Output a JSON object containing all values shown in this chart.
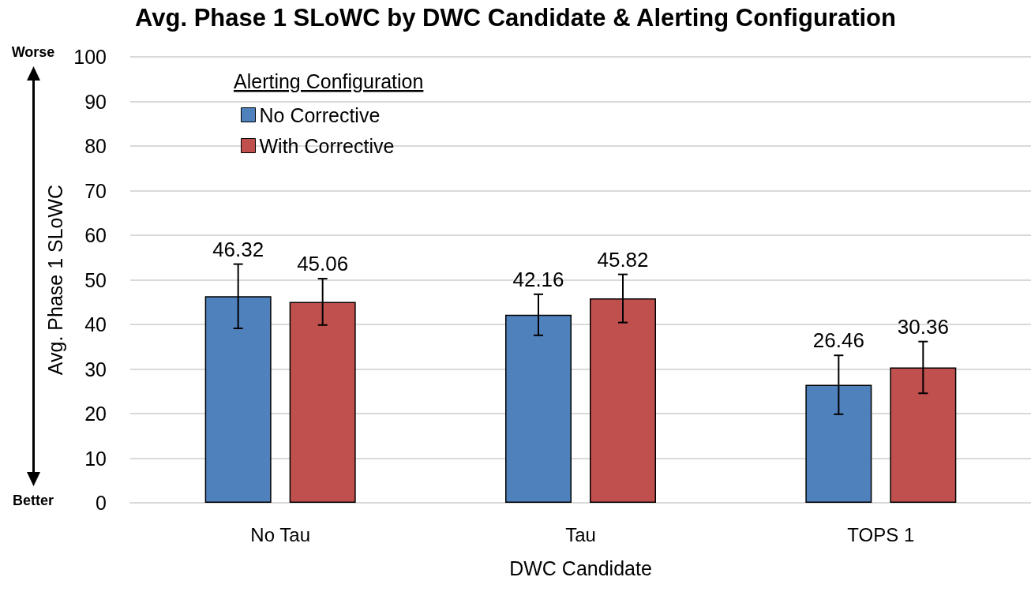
{
  "chart_data": {
    "type": "bar",
    "title": "Avg. Phase 1 SLoWC by DWC Candidate & Alerting Configuration",
    "xlabel": "DWC Candidate",
    "ylabel": "Avg. Phase 1 SLoWC",
    "legend_title": "Alerting Configuration",
    "annotations": [
      "Worse",
      "Better"
    ],
    "categories": [
      "No Tau",
      "Tau",
      "TOPS 1"
    ],
    "series": [
      {
        "name": "No Corrective",
        "color": "#4f81bd",
        "values": [
          46.32,
          42.16,
          26.46
        ],
        "errors": [
          7.2,
          4.6,
          6.6
        ]
      },
      {
        "name": "With Corrective",
        "color": "#c0504d",
        "values": [
          45.06,
          45.82,
          30.36
        ],
        "errors": [
          5.2,
          5.4,
          5.8
        ]
      }
    ],
    "ylim": [
      0,
      100
    ],
    "yticks": [
      0,
      10,
      20,
      30,
      40,
      50,
      60,
      70,
      80,
      90,
      100
    ],
    "grid": "y",
    "legend": "top left",
    "data_labels": true
  }
}
